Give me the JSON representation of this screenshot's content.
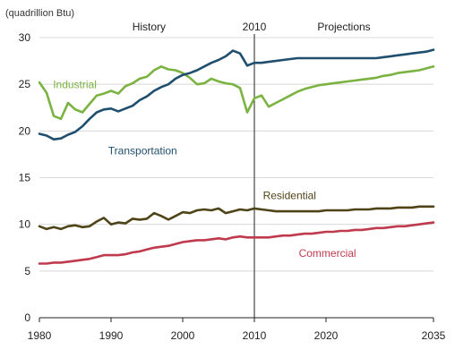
{
  "chart_data": {
    "type": "line",
    "unit_label": "(quadrillion Btu)",
    "xlim": [
      1980,
      2035
    ],
    "ylim": [
      0,
      30
    ],
    "x_ticks": [
      1980,
      1990,
      2000,
      2010,
      2020,
      2035
    ],
    "y_ticks": [
      0,
      5,
      10,
      15,
      20,
      25,
      30
    ],
    "divider_year": 2010,
    "region_labels": {
      "history": "History",
      "divider": "2010",
      "projections": "Projections"
    },
    "series": [
      {
        "name": "Industrial",
        "color": "#7bb342",
        "x": [
          1980,
          1981,
          1982,
          1983,
          1984,
          1985,
          1986,
          1987,
          1988,
          1989,
          1990,
          1991,
          1992,
          1993,
          1994,
          1995,
          1996,
          1997,
          1998,
          1999,
          2000,
          2001,
          2002,
          2003,
          2004,
          2005,
          2006,
          2007,
          2008,
          2009,
          2010,
          2011,
          2012,
          2013,
          2014,
          2015,
          2016,
          2017,
          2018,
          2019,
          2020,
          2021,
          2022,
          2023,
          2024,
          2025,
          2026,
          2027,
          2028,
          2029,
          2030,
          2031,
          2032,
          2033,
          2034,
          2035
        ],
        "values": [
          25.2,
          24.1,
          21.6,
          21.3,
          23.0,
          22.3,
          22.0,
          22.9,
          23.8,
          24.0,
          24.3,
          24.0,
          24.8,
          25.1,
          25.6,
          25.8,
          26.5,
          26.9,
          26.6,
          26.5,
          26.2,
          25.7,
          25.0,
          25.1,
          25.6,
          25.3,
          25.1,
          25.0,
          24.6,
          22.0,
          23.5,
          23.8,
          22.6,
          23.0,
          23.4,
          23.8,
          24.2,
          24.5,
          24.7,
          24.9,
          25.0,
          25.1,
          25.2,
          25.3,
          25.4,
          25.5,
          25.6,
          25.7,
          25.9,
          26.0,
          26.2,
          26.3,
          26.4,
          26.5,
          26.7,
          26.9
        ]
      },
      {
        "name": "Transportation",
        "color": "#1f4e6e",
        "x": [
          1980,
          1981,
          1982,
          1983,
          1984,
          1985,
          1986,
          1987,
          1988,
          1989,
          1990,
          1991,
          1992,
          1993,
          1994,
          1995,
          1996,
          1997,
          1998,
          1999,
          2000,
          2001,
          2002,
          2003,
          2004,
          2005,
          2006,
          2007,
          2008,
          2009,
          2010,
          2011,
          2012,
          2013,
          2014,
          2015,
          2016,
          2017,
          2018,
          2019,
          2020,
          2021,
          2022,
          2023,
          2024,
          2025,
          2026,
          2027,
          2028,
          2029,
          2030,
          2031,
          2032,
          2033,
          2034,
          2035
        ],
        "values": [
          19.7,
          19.5,
          19.1,
          19.2,
          19.6,
          19.9,
          20.5,
          21.3,
          22.0,
          22.3,
          22.4,
          22.1,
          22.4,
          22.7,
          23.3,
          23.7,
          24.3,
          24.7,
          25.0,
          25.6,
          26.0,
          26.2,
          26.5,
          26.9,
          27.3,
          27.6,
          28.0,
          28.6,
          28.3,
          27.0,
          27.3,
          27.3,
          27.4,
          27.5,
          27.6,
          27.7,
          27.8,
          27.8,
          27.8,
          27.8,
          27.8,
          27.8,
          27.8,
          27.8,
          27.8,
          27.8,
          27.8,
          27.8,
          27.9,
          28.0,
          28.1,
          28.2,
          28.3,
          28.4,
          28.5,
          28.7
        ]
      },
      {
        "name": "Residential",
        "color": "#4f4318",
        "x": [
          1980,
          1981,
          1982,
          1983,
          1984,
          1985,
          1986,
          1987,
          1988,
          1989,
          1990,
          1991,
          1992,
          1993,
          1994,
          1995,
          1996,
          1997,
          1998,
          1999,
          2000,
          2001,
          2002,
          2003,
          2004,
          2005,
          2006,
          2007,
          2008,
          2009,
          2010,
          2011,
          2012,
          2013,
          2014,
          2015,
          2016,
          2017,
          2018,
          2019,
          2020,
          2021,
          2022,
          2023,
          2024,
          2025,
          2026,
          2027,
          2028,
          2029,
          2030,
          2031,
          2032,
          2033,
          2034,
          2035
        ],
        "values": [
          9.8,
          9.5,
          9.7,
          9.5,
          9.8,
          9.9,
          9.7,
          9.8,
          10.3,
          10.7,
          10.0,
          10.2,
          10.1,
          10.6,
          10.5,
          10.6,
          11.2,
          10.9,
          10.5,
          10.9,
          11.3,
          11.2,
          11.5,
          11.6,
          11.5,
          11.7,
          11.2,
          11.4,
          11.6,
          11.5,
          11.7,
          11.6,
          11.5,
          11.4,
          11.4,
          11.4,
          11.4,
          11.4,
          11.4,
          11.4,
          11.5,
          11.5,
          11.5,
          11.5,
          11.6,
          11.6,
          11.6,
          11.7,
          11.7,
          11.7,
          11.8,
          11.8,
          11.8,
          11.9,
          11.9,
          11.9
        ]
      },
      {
        "name": "Commercial",
        "color": "#c03a4d",
        "x": [
          1980,
          1981,
          1982,
          1983,
          1984,
          1985,
          1986,
          1987,
          1988,
          1989,
          1990,
          1991,
          1992,
          1993,
          1994,
          1995,
          1996,
          1997,
          1998,
          1999,
          2000,
          2001,
          2002,
          2003,
          2004,
          2005,
          2006,
          2007,
          2008,
          2009,
          2010,
          2011,
          2012,
          2013,
          2014,
          2015,
          2016,
          2017,
          2018,
          2019,
          2020,
          2021,
          2022,
          2023,
          2024,
          2025,
          2026,
          2027,
          2028,
          2029,
          2030,
          2031,
          2032,
          2033,
          2034,
          2035
        ],
        "values": [
          5.8,
          5.8,
          5.9,
          5.9,
          6.0,
          6.1,
          6.2,
          6.3,
          6.5,
          6.7,
          6.7,
          6.7,
          6.8,
          7.0,
          7.1,
          7.3,
          7.5,
          7.6,
          7.7,
          7.9,
          8.1,
          8.2,
          8.3,
          8.3,
          8.4,
          8.5,
          8.4,
          8.6,
          8.7,
          8.6,
          8.6,
          8.6,
          8.6,
          8.7,
          8.8,
          8.8,
          8.9,
          9.0,
          9.0,
          9.1,
          9.2,
          9.2,
          9.3,
          9.3,
          9.4,
          9.4,
          9.5,
          9.6,
          9.6,
          9.7,
          9.8,
          9.8,
          9.9,
          10.0,
          10.1,
          10.2
        ]
      }
    ]
  }
}
